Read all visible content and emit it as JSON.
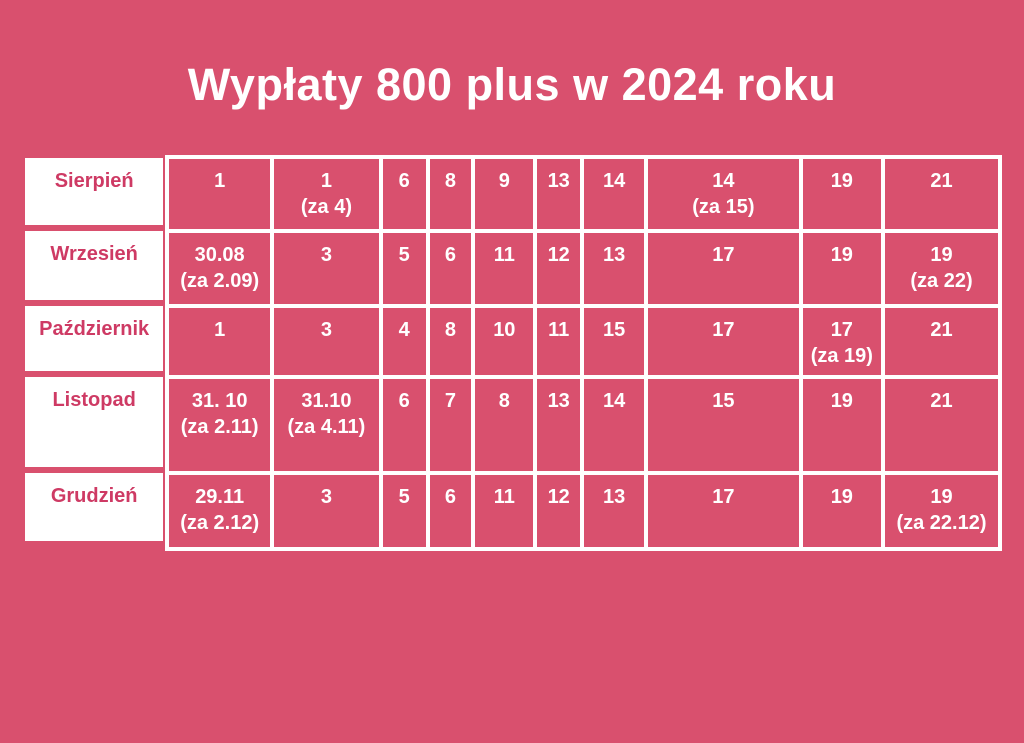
{
  "page": {
    "background_color": "#d9506e",
    "grid_color": "#ffffff",
    "month_text_color": "#ce3a64",
    "value_text_color": "#ffffff",
    "title_color": "#ffffff"
  },
  "chart_data": {
    "type": "table",
    "title": "Wypłaty 800 plus w 2024 roku",
    "rows": [
      {
        "month": "Sierpień",
        "payments": [
          "1",
          "1\n(za 4)",
          "6",
          "8",
          "9",
          "13",
          "14",
          "14\n(za 15)",
          "19",
          "21"
        ]
      },
      {
        "month": "Wrzesień",
        "payments": [
          "30.08\n(za 2.09)",
          "3",
          "5",
          "6",
          "11",
          "12",
          "13",
          "17",
          "19",
          "19\n(za 22)"
        ]
      },
      {
        "month": "Październik",
        "payments": [
          "1",
          "3",
          "4",
          "8",
          "10",
          "11",
          "15",
          "17",
          "17\n(za 19)",
          "21"
        ]
      },
      {
        "month": "Listopad",
        "payments": [
          "31. 10\n(za 2.11)",
          "31.10\n(za 4.11)",
          "6",
          "7",
          "8",
          "13",
          "14",
          "15",
          "19",
          "21"
        ]
      },
      {
        "month": "Grudzień",
        "payments": [
          "29.11\n(za 2.12)",
          "3",
          "5",
          "6",
          "11",
          "12",
          "13",
          "17",
          "19",
          "19\n(za 22.12)"
        ]
      }
    ]
  }
}
